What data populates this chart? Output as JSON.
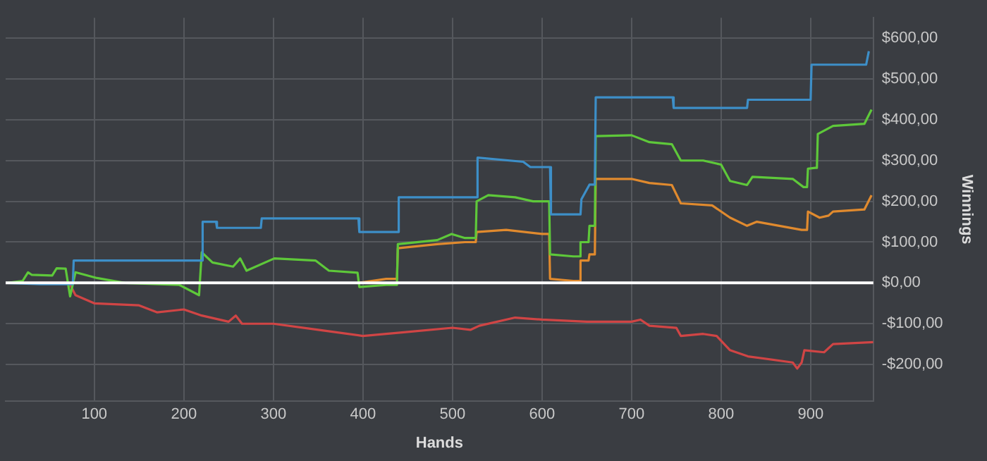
{
  "chart_data": {
    "type": "line",
    "xlabel": "Hands",
    "ylabel": "Winnings",
    "xlim": [
      1,
      970
    ],
    "ylim": [
      -290,
      650
    ],
    "xticks": [
      100,
      200,
      300,
      400,
      500,
      600,
      700,
      800,
      900
    ],
    "yticks": [
      {
        "value": -200,
        "label": "-$200,00"
      },
      {
        "value": -100,
        "label": "-$100,00"
      },
      {
        "value": 0,
        "label": "$0,00"
      },
      {
        "value": 100,
        "label": "$100,00"
      },
      {
        "value": 200,
        "label": "$200,00"
      },
      {
        "value": 300,
        "label": "$300,00"
      },
      {
        "value": 400,
        "label": "$400,00"
      },
      {
        "value": 500,
        "label": "$500,00"
      },
      {
        "value": 600,
        "label": "$600,00"
      }
    ],
    "grid": true,
    "legend": false,
    "marker": "none",
    "line_style": "solid",
    "ref_lines": [
      {
        "axis": "y",
        "value": 0,
        "color": "#ffffff"
      }
    ],
    "series": [
      {
        "color": "#3d8fc8",
        "x": [
          3,
          40,
          76,
          77,
          220,
          221,
          236,
          237,
          286,
          287,
          395,
          396,
          439,
          440,
          527,
          528,
          579,
          587,
          609,
          610,
          643,
          644,
          653,
          659,
          660,
          746,
          747,
          829,
          830,
          900,
          901,
          962,
          965
        ],
        "values": [
          0,
          -3,
          -3,
          55,
          55,
          150,
          150,
          135,
          135,
          158,
          158,
          125,
          125,
          210,
          210,
          307,
          297,
          284,
          284,
          168,
          168,
          205,
          241,
          241,
          455,
          455,
          429,
          429,
          449,
          449,
          535,
          535,
          568
        ]
      },
      {
        "color": "#5ec83a",
        "x": [
          3,
          20,
          26,
          30,
          53,
          58,
          68,
          73,
          79,
          103,
          134,
          195,
          217,
          220,
          232,
          255,
          263,
          270,
          301,
          347,
          362,
          394,
          396,
          426,
          438,
          439,
          483,
          499,
          514,
          526,
          527,
          540,
          570,
          590,
          608,
          609,
          635,
          642,
          643,
          652,
          653,
          659,
          660,
          700,
          720,
          745,
          755,
          780,
          800,
          810,
          829,
          835,
          880,
          892,
          896,
          897,
          905,
          907,
          908,
          925,
          960,
          968
        ],
        "values": [
          0,
          5,
          26,
          20,
          18,
          36,
          35,
          -33,
          26,
          12,
          0,
          -5,
          -30,
          75,
          50,
          40,
          60,
          30,
          60,
          55,
          30,
          25,
          -10,
          -5,
          -5,
          95,
          105,
          120,
          110,
          110,
          200,
          215,
          210,
          200,
          200,
          70,
          65,
          65,
          100,
          100,
          140,
          140,
          360,
          362,
          345,
          340,
          300,
          300,
          290,
          250,
          240,
          260,
          255,
          235,
          235,
          280,
          282,
          282,
          365,
          385,
          390,
          425
        ]
      },
      {
        "color": "#e08a2e",
        "x": [
          395,
          426,
          438,
          439,
          483,
          514,
          526,
          527,
          560,
          600,
          608,
          609,
          635,
          642,
          643,
          652,
          653,
          659,
          660,
          700,
          720,
          745,
          755,
          790,
          810,
          829,
          840,
          890,
          896,
          897,
          910,
          920,
          925,
          960,
          968
        ],
        "values": [
          0,
          10,
          10,
          85,
          95,
          100,
          100,
          125,
          130,
          120,
          120,
          10,
          5,
          5,
          55,
          55,
          70,
          70,
          255,
          255,
          245,
          240,
          195,
          190,
          160,
          140,
          150,
          130,
          130,
          175,
          160,
          165,
          175,
          180,
          215
        ]
      },
      {
        "color": "#d04545",
        "x": [
          3,
          72,
          79,
          100,
          150,
          170,
          200,
          220,
          250,
          258,
          265,
          300,
          350,
          400,
          450,
          500,
          520,
          530,
          570,
          600,
          650,
          700,
          710,
          720,
          750,
          755,
          780,
          795,
          810,
          830,
          880,
          885,
          890,
          893,
          915,
          925,
          970
        ],
        "values": [
          0,
          0,
          -30,
          -50,
          -55,
          -72,
          -65,
          -80,
          -95,
          -80,
          -100,
          -100,
          -115,
          -130,
          -120,
          -110,
          -115,
          -105,
          -85,
          -90,
          -95,
          -95,
          -90,
          -105,
          -110,
          -130,
          -125,
          -130,
          -165,
          -180,
          -195,
          -210,
          -195,
          -165,
          -170,
          -150,
          -145
        ]
      }
    ]
  }
}
